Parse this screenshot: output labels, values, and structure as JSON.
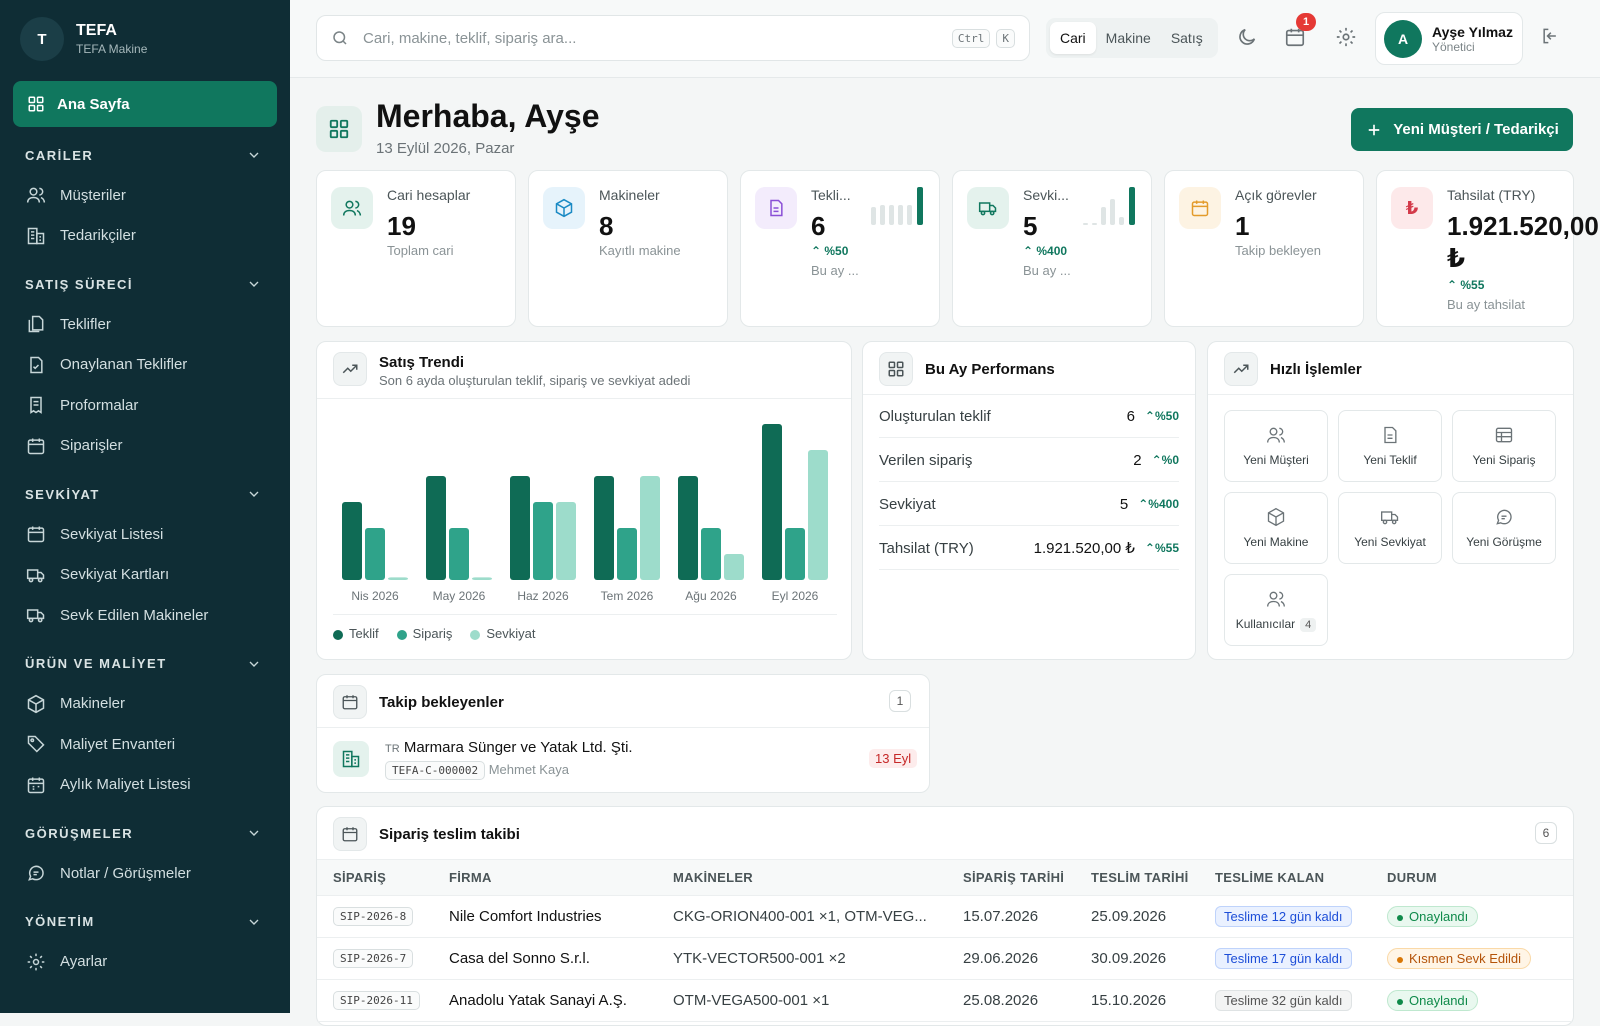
{
  "brand": {
    "initial": "T",
    "name": "TEFA",
    "sub": "TEFA Makine"
  },
  "nav": {
    "home": "Ana Sayfa",
    "sections": [
      {
        "title": "CARİLER",
        "items": [
          "Müşteriler",
          "Tedarikçiler"
        ]
      },
      {
        "title": "SATIŞ SÜRECİ",
        "items": [
          "Teklifler",
          "Onaylanan Teklifler",
          "Proformalar",
          "Siparişler"
        ]
      },
      {
        "title": "SEVKİYAT",
        "items": [
          "Sevkiyat Listesi",
          "Sevkiyat Kartları",
          "Sevk Edilen Makineler"
        ]
      },
      {
        "title": "ÜRÜN VE MALİYET",
        "items": [
          "Makineler",
          "Maliyet Envanteri",
          "Aylık Maliyet Listesi"
        ]
      },
      {
        "title": "GÖRÜŞMELER",
        "items": [
          "Notlar / Görüşmeler"
        ]
      },
      {
        "title": "YÖNETİM",
        "items": [
          "Ayarlar"
        ]
      }
    ]
  },
  "topbar": {
    "search_placeholder": "Cari, makine, teklif, sipariş ara...",
    "kbd1": "Ctrl",
    "kbd2": "K",
    "segments": [
      "Cari",
      "Makine",
      "Satış"
    ],
    "notif_count": "1",
    "user": {
      "initial": "A",
      "name": "Ayşe Yılmaz",
      "role": "Yönetici"
    }
  },
  "hero": {
    "title": "Merhaba, Ayşe",
    "date": "13 Eylül 2026, Pazar",
    "new_button": "Yeni Müşteri / Tedarikçi"
  },
  "stats": [
    {
      "label": "Cari hesaplar",
      "value": "19",
      "sub": "Toplam cari",
      "trend": ""
    },
    {
      "label": "Makineler",
      "value": "8",
      "sub": "Kayıtlı makine",
      "trend": ""
    },
    {
      "label": "Tekli...",
      "value": "6",
      "sub": "Bu ay ...",
      "trend": "%50"
    },
    {
      "label": "Sevki...",
      "value": "5",
      "sub": "Bu ay ...",
      "trend": "%400"
    },
    {
      "label": "Açık görevler",
      "value": "1",
      "sub": "Takip bekleyen",
      "trend": ""
    },
    {
      "label": "Tahsilat (TRY)",
      "value": "1.921.520,00",
      "value2": "₺",
      "sub": "Bu ay tahsilat",
      "trend": "%55"
    }
  ],
  "trend_panel": {
    "title": "Satış Trendi",
    "subtitle": "Son 6 ayda oluşturulan teklif, sipariş ve sevkiyat adedi"
  },
  "chart_data": {
    "type": "bar",
    "categories": [
      "Nis 2026",
      "May 2026",
      "Haz 2026",
      "Tem 2026",
      "Ağu 2026",
      "Eyl 2026"
    ],
    "series": [
      {
        "name": "Teklif",
        "values": [
          3,
          4,
          4,
          4,
          4,
          6
        ]
      },
      {
        "name": "Sipariş",
        "values": [
          2,
          2,
          3,
          2,
          2,
          2
        ]
      },
      {
        "name": "Sevkiyat",
        "values": [
          0.1,
          0.1,
          3,
          4,
          1,
          5
        ]
      }
    ],
    "colors": [
      "#0f6b55",
      "#2fa38a",
      "#9ddccb"
    ],
    "ylim": [
      0,
      6
    ]
  },
  "perf": {
    "title": "Bu Ay Performans",
    "rows": [
      {
        "label": "Oluşturulan teklif",
        "value": "6",
        "trend": "%50"
      },
      {
        "label": "Verilen sipariş",
        "value": "2",
        "trend": "%0"
      },
      {
        "label": "Sevkiyat",
        "value": "5",
        "trend": "%400"
      },
      {
        "label": "Tahsilat (TRY)",
        "value": "1.921.520,00 ₺",
        "trend": "%55"
      }
    ]
  },
  "quick": {
    "title": "Hızlı İşlemler",
    "items": [
      "Yeni Müşteri",
      "Yeni Teklif",
      "Yeni Sipariş",
      "Yeni Makine",
      "Yeni Sevkiyat",
      "Yeni Görüşme",
      "Kullanıcılar"
    ],
    "users_count": "4"
  },
  "followups": {
    "title": "Takip bekleyenler",
    "count": "1",
    "item": {
      "country": "TR",
      "name": "Marmara Sünger ve Yatak Ltd. Şti.",
      "code": "TEFA-C-000002",
      "person": "Mehmet Kaya",
      "date": "13 Eyl"
    }
  },
  "orders": {
    "title": "Sipariş teslim takibi",
    "count": "6",
    "headers": [
      "SİPARİŞ",
      "FİRMA",
      "MAKİNELER",
      "SİPARİŞ TARİHİ",
      "TESLİM TARİHİ",
      "TESLİME KALAN",
      "DURUM"
    ],
    "rows": [
      {
        "id": "SIP-2026-8",
        "firm": "Nile Comfort Industries",
        "machines": "CKG-ORION400-001 ×1, OTM-VEG...",
        "order_date": "15.07.2026",
        "delivery": "25.09.2026",
        "remaining": "Teslime 12 gün kaldı",
        "status": "Onaylandı"
      },
      {
        "id": "SIP-2026-7",
        "firm": "Casa del Sonno S.r.l.",
        "machines": "YTK-VECTOR500-001 ×2",
        "order_date": "29.06.2026",
        "delivery": "30.09.2026",
        "remaining": "Teslime 17 gün kaldı",
        "status": "Kısmen Sevk Edildi"
      },
      {
        "id": "SIP-2026-11",
        "firm": "Anadolu Yatak Sanayi A.Ş.",
        "machines": "OTM-VEGA500-001 ×1",
        "order_date": "25.08.2026",
        "delivery": "15.10.2026",
        "remaining": "Teslime 32 gün kaldı",
        "status": "Onaylandı"
      }
    ]
  }
}
